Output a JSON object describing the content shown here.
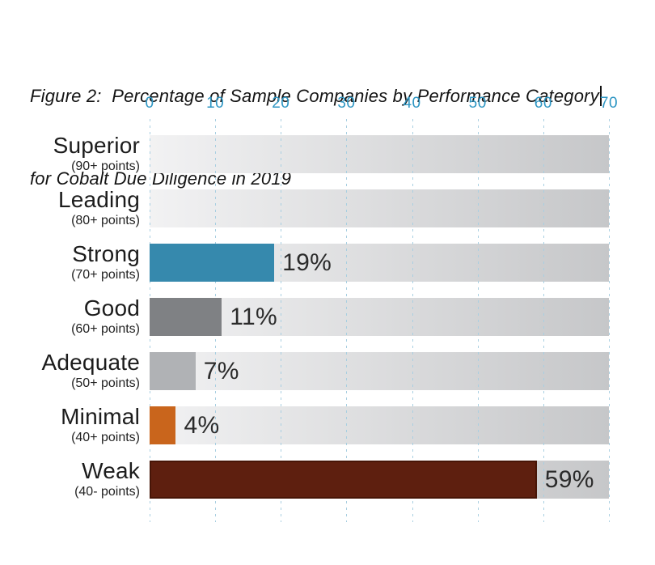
{
  "header": {
    "title_line1": "Figure 2:  Percentage of Sample Companies by Performance Category",
    "title_line2": "for Cobalt Due Diligence in 2019"
  },
  "chart_data": {
    "type": "bar",
    "orientation": "horizontal",
    "title": "Figure 2: Percentage of Sample Companies by Performance Category for Cobalt Due Diligence in 2019",
    "categories": [
      "Superior",
      "Leading",
      "Strong",
      "Good",
      "Adequate",
      "Minimal",
      "Weak"
    ],
    "category_sublabels": [
      "(90+ points)",
      "(80+ points)",
      "(70+ points)",
      "(60+ points)",
      "(50+ points)",
      "(40+ points)",
      "(40- points)"
    ],
    "values": [
      0,
      0,
      19,
      11,
      7,
      4,
      59
    ],
    "value_labels": [
      "",
      "",
      "19%",
      "11%",
      "7%",
      "4%",
      "59%"
    ],
    "unit": "%",
    "xlim": [
      0,
      70
    ],
    "x_ticks": [
      "0",
      "10",
      "20",
      "30",
      "40",
      "50",
      "60",
      "70"
    ],
    "grid": "vertical-dashed",
    "legend": "none",
    "bar_colors": [
      "none",
      "none",
      "#3689ad",
      "#7f8184",
      "#b0b2b5",
      "#c9651c",
      "#5e1f0f"
    ],
    "bar_borders": [
      "none",
      "none",
      "none",
      "none",
      "none",
      "none",
      "#471507"
    ],
    "track_gradient": [
      "#f2f2f3",
      "#c6c7c9"
    ],
    "tick_label_color": "#2e96c3",
    "gridline_color": "#a9cfe1",
    "value_label_color": "#2b2b2b",
    "category_label_color": "#1c1c1c"
  }
}
